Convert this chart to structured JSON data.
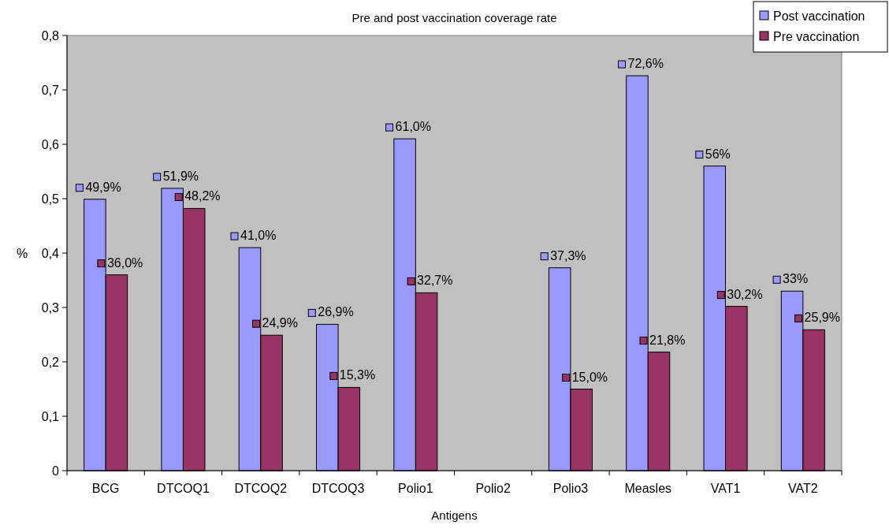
{
  "chart_data": {
    "type": "bar",
    "title": "Pre and post vaccination coverage rate",
    "xlabel": "Antigens",
    "ylabel": "%",
    "categories": [
      "BCG",
      "DTCOQ1",
      "DTCOQ2",
      "DTCOQ3",
      "Polio1",
      "Polio2",
      "Polio3",
      "Measles",
      "VAT1",
      "VAT2"
    ],
    "series": [
      {
        "name": "Post vaccination",
        "color": "#9999ff",
        "values": [
          0.499,
          0.519,
          0.41,
          0.269,
          0.61,
          null,
          0.373,
          0.726,
          0.56,
          0.33
        ],
        "value_labels": [
          "49,9%",
          "51,9%",
          "41,0%",
          "26,9%",
          "61,0%",
          null,
          "37,3%",
          "72,6%",
          "56%",
          "33%"
        ]
      },
      {
        "name": "Pre vaccination",
        "color": "#993366",
        "values": [
          0.36,
          0.482,
          0.249,
          0.153,
          0.327,
          null,
          0.15,
          0.218,
          0.302,
          0.259
        ],
        "value_labels": [
          "36,0%",
          "48,2%",
          "24,9%",
          "15,3%",
          "32,7%",
          null,
          "15,0%",
          "21,8%",
          "30,2%",
          "25,9%"
        ]
      }
    ],
    "ylim": [
      0,
      0.8
    ],
    "yticks": [
      0,
      {
        "value": 0.1,
        "label": "0,1"
      },
      {
        "value": 0.2,
        "label": "0,2"
      },
      {
        "value": 0.3,
        "label": "0,3"
      },
      {
        "value": 0.4,
        "label": "0,4"
      },
      {
        "value": 0.5,
        "label": "0,5"
      },
      {
        "value": 0.6,
        "label": "0,6"
      },
      {
        "value": 0.7,
        "label": "0,7"
      },
      {
        "value": 0.8,
        "label": "0,8"
      }
    ],
    "grid": false,
    "legend": "top right"
  }
}
